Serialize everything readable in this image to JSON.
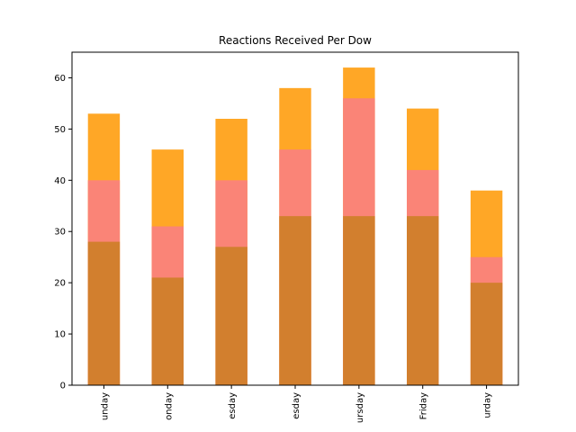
{
  "chart_data": {
    "type": "bar",
    "stacked": false,
    "overlaid": true,
    "title": "Reactions Received Per Dow",
    "xlabel": "",
    "ylabel": "",
    "ylim": [
      0,
      65
    ],
    "yticks": [
      0,
      10,
      20,
      30,
      40,
      50,
      60
    ],
    "grid": false,
    "legend": "none",
    "categories": [
      "Sunday",
      "Monday",
      "Tuesday",
      "Wednesday",
      "Thursday",
      "Friday",
      "Saturday"
    ],
    "tick_labels_visible": [
      "unday",
      "onday",
      "esday",
      "esday",
      "ursday",
      "Friday",
      "urday"
    ],
    "series": [
      {
        "values": [
          53,
          46,
          52,
          58,
          62,
          54,
          38
        ],
        "color": "#ffa726"
      },
      {
        "values": [
          40,
          31,
          40,
          46,
          56,
          42,
          25
        ],
        "color": "#fa8477"
      },
      {
        "values": [
          28,
          21,
          27,
          33,
          33,
          33,
          20
        ],
        "color": "#d27f2e"
      }
    ]
  }
}
